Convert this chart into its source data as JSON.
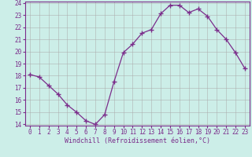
{
  "x": [
    0,
    1,
    2,
    3,
    4,
    5,
    6,
    7,
    8,
    9,
    10,
    11,
    12,
    13,
    14,
    15,
    16,
    17,
    18,
    19,
    20,
    21,
    22,
    23
  ],
  "y": [
    18.1,
    17.9,
    17.2,
    16.5,
    15.6,
    15.0,
    14.3,
    14.0,
    14.8,
    17.5,
    19.9,
    20.6,
    21.5,
    21.8,
    23.1,
    23.8,
    23.8,
    23.2,
    23.5,
    22.9,
    21.8,
    21.0,
    19.9,
    18.6
  ],
  "line_color": "#7b2d8b",
  "marker": "+",
  "marker_size": 4,
  "bg_color": "#cceee8",
  "grid_color": "#aaaaaa",
  "xlabel": "Windchill (Refroidissement éolien,°C)",
  "xlabel_color": "#7b2d8b",
  "tick_color": "#7b2d8b",
  "spine_color": "#7b2d8b",
  "ylim": [
    14,
    24
  ],
  "xlim": [
    -0.5,
    23.5
  ],
  "yticks": [
    14,
    15,
    16,
    17,
    18,
    19,
    20,
    21,
    22,
    23,
    24
  ],
  "xticks": [
    0,
    1,
    2,
    3,
    4,
    5,
    6,
    7,
    8,
    9,
    10,
    11,
    12,
    13,
    14,
    15,
    16,
    17,
    18,
    19,
    20,
    21,
    22,
    23
  ],
  "tick_fontsize": 5.5,
  "xlabel_fontsize": 6.0
}
